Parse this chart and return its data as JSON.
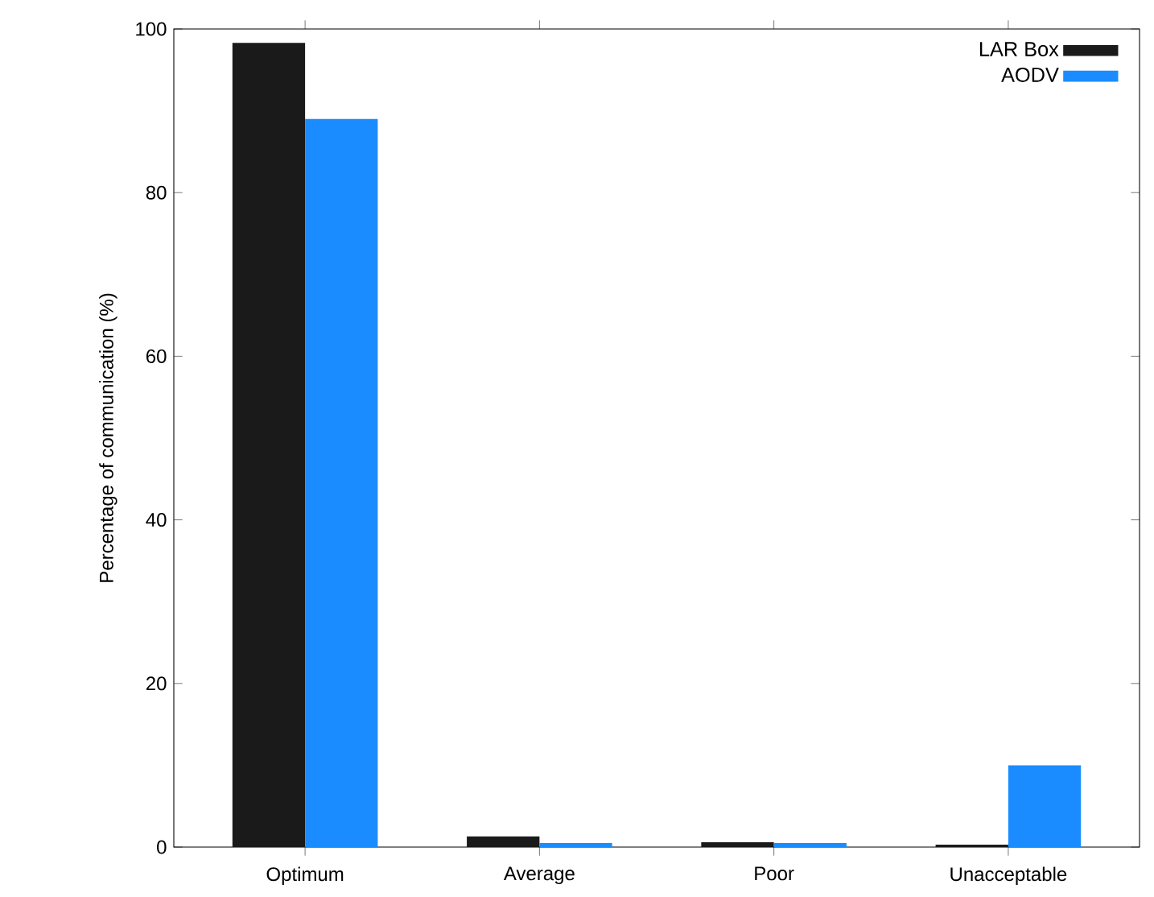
{
  "chart_data": {
    "type": "bar",
    "ylabel": "Percentage of communication (%)",
    "categories": [
      "Optimum",
      "Average",
      "Poor",
      "Unacceptable"
    ],
    "series": [
      {
        "name": "LAR Box",
        "color": "#1a1a1a",
        "values": [
          98.3,
          1.3,
          0.6,
          0.3
        ]
      },
      {
        "name": "AODV",
        "color": "#1a8cff",
        "values": [
          89.0,
          0.5,
          0.5,
          10.0
        ]
      }
    ],
    "ylim": [
      0,
      100
    ],
    "yticks": [
      0,
      20,
      40,
      60,
      80,
      100
    ],
    "legend": "top right",
    "grid": false
  }
}
